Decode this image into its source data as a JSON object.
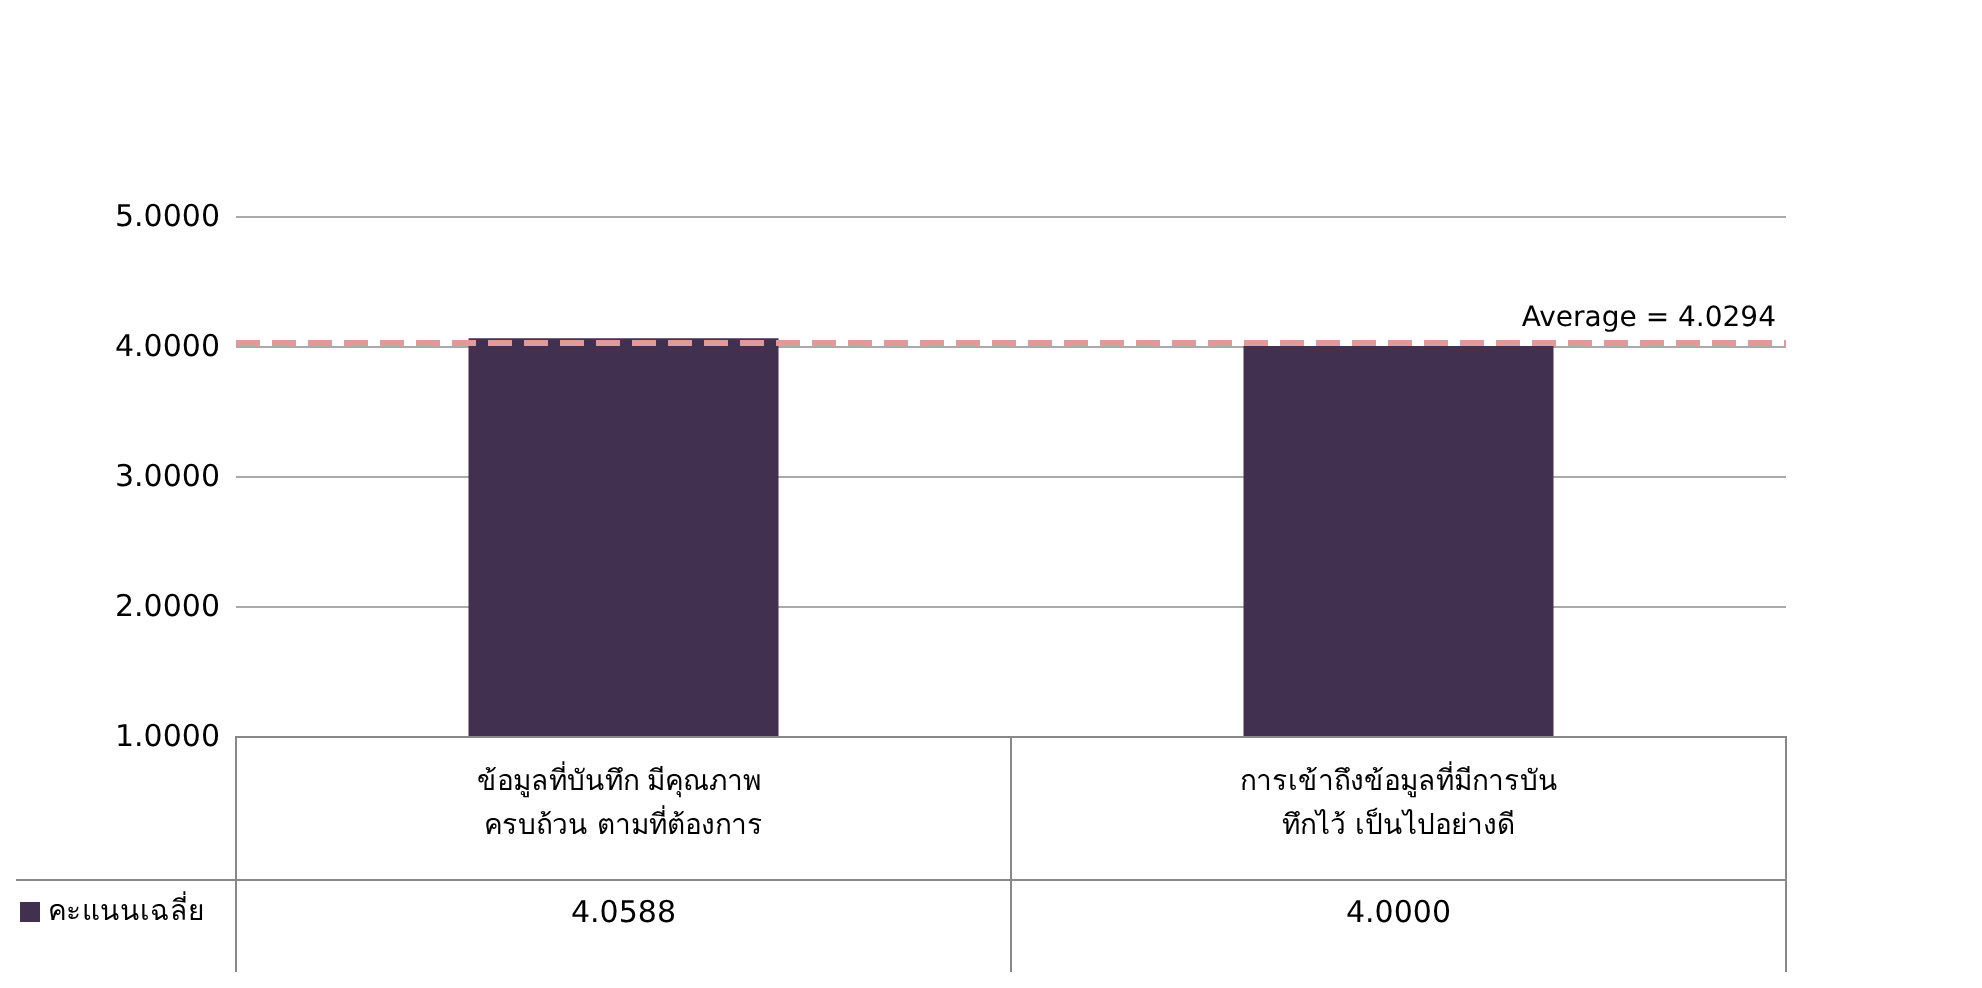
{
  "chart_data": {
    "type": "bar",
    "categories": [
      "ข้อมูลที่บันทึก มีคุณภาพ ครบถ้วน ตามที่ต้องการ",
      "การเข้าถึงข้อมูลที่มีการบันทึกไว้ เป็นไปอย่างดี"
    ],
    "series": [
      {
        "name": "คะแนนเฉลี่ย",
        "color": "#41304f",
        "values": [
          4.0588,
          4.0
        ],
        "value_labels": [
          "4.0588",
          "4.0000"
        ]
      }
    ],
    "ylim": [
      1,
      5
    ],
    "yticks": [
      {
        "value": 1,
        "label": "1.0000"
      },
      {
        "value": 2,
        "label": "2.0000"
      },
      {
        "value": 3,
        "label": "3.0000"
      },
      {
        "value": 4,
        "label": "4.0000"
      },
      {
        "value": 5,
        "label": "5.0000"
      }
    ],
    "grid": "y",
    "legend": "bottom left",
    "ref_lines": [
      {
        "axis": "y",
        "value": 4.0294,
        "label": "Average = 4.0294",
        "color": "#e09a9a",
        "line_style": "dashed"
      }
    ]
  }
}
